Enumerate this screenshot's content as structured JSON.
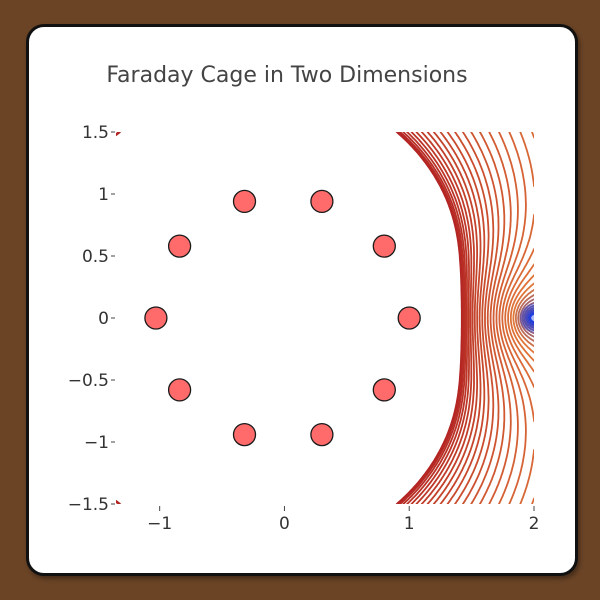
{
  "chart_data": {
    "type": "contour",
    "title": "Faraday Cage in Two Dimensions",
    "xlabel": "",
    "ylabel": "",
    "xlim": [
      -1.35,
      2.0
    ],
    "ylim": [
      -1.5,
      1.5
    ],
    "x_ticks": [
      -1,
      0,
      1,
      2
    ],
    "y_ticks": [
      -1.5,
      -1,
      -0.5,
      0,
      0.5,
      1,
      1.5
    ],
    "x_tick_labels": [
      "−1",
      "0",
      "1",
      "2"
    ],
    "y_tick_labels": [
      "−1.5",
      "−1",
      "−0.5",
      "0",
      "0.5",
      "1",
      "1.5"
    ],
    "grid": false,
    "point_source": {
      "x": 2,
      "y": 0
    },
    "disks": [
      {
        "x": 1.0,
        "y": 0.0
      },
      {
        "x": 0.8,
        "y": 0.58
      },
      {
        "x": 0.3,
        "y": 0.94
      },
      {
        "x": -0.32,
        "y": 0.94
      },
      {
        "x": -0.84,
        "y": 0.58
      },
      {
        "x": -1.03,
        "y": 0.0
      },
      {
        "x": -0.84,
        "y": -0.58
      },
      {
        "x": -0.32,
        "y": -0.94
      },
      {
        "x": 0.3,
        "y": -0.94
      },
      {
        "x": 0.8,
        "y": -0.58
      }
    ],
    "colors": {
      "contour_outer": "#b22222",
      "contour_mid": "#e0763a",
      "contour_inner": "#1a3fe0",
      "disk_fill": "#ff6b6b",
      "disk_stroke": "#1a1a1a"
    }
  }
}
